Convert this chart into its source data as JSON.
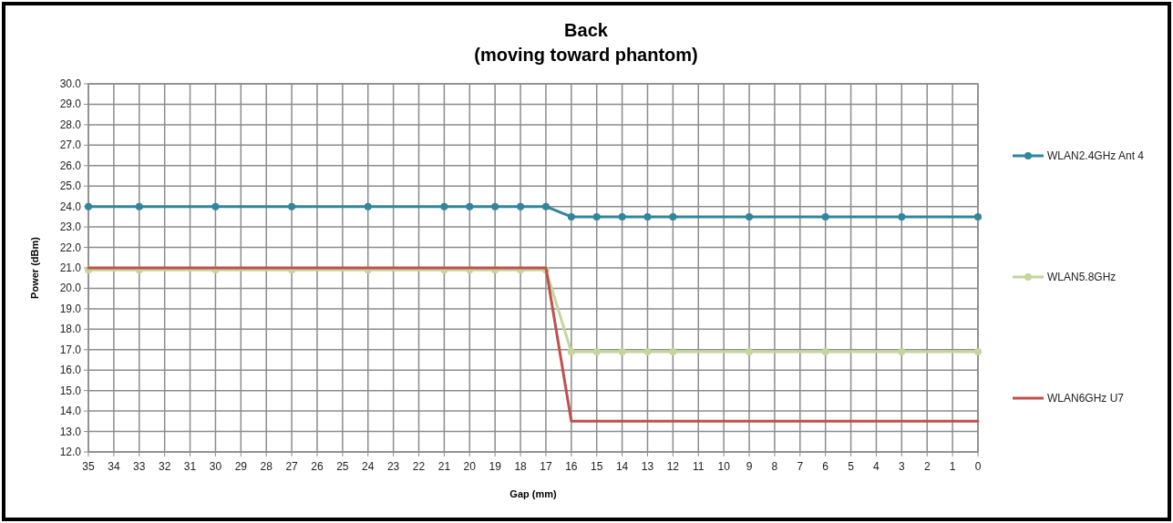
{
  "chart_data": {
    "type": "line",
    "title": "Back\n(moving toward phantom)",
    "xlabel": "Gap (mm)",
    "ylabel": "Power (dBm)",
    "x": [
      35,
      33,
      30,
      27,
      24,
      21,
      20,
      19,
      18,
      17,
      16,
      15,
      14,
      13,
      12,
      9,
      6,
      3,
      0
    ],
    "series": [
      {
        "name": "WLAN2.4GHz Ant 4",
        "color": "#31859c",
        "marker": "circle",
        "values": [
          24.0,
          24.0,
          24.0,
          24.0,
          24.0,
          24.0,
          24.0,
          24.0,
          24.0,
          24.0,
          23.5,
          23.5,
          23.5,
          23.5,
          23.5,
          23.5,
          23.5,
          23.5,
          23.5
        ]
      },
      {
        "name": "WLAN5.8GHz",
        "color": "#c3d69b",
        "marker": "circle",
        "values": [
          20.9,
          20.9,
          20.9,
          20.9,
          20.9,
          20.9,
          20.9,
          20.9,
          20.9,
          20.9,
          16.9,
          16.9,
          16.9,
          16.9,
          16.9,
          16.9,
          16.9,
          16.9,
          16.9
        ]
      },
      {
        "name": "WLAN6GHz U7",
        "color": "#c0504d",
        "marker": "none",
        "values": [
          21.0,
          21.0,
          21.0,
          21.0,
          21.0,
          21.0,
          21.0,
          21.0,
          21.0,
          21.0,
          13.5,
          13.5,
          13.5,
          13.5,
          13.5,
          13.5,
          13.5,
          13.5,
          13.5
        ]
      }
    ],
    "xlim": [
      35,
      0
    ],
    "xticks": [
      35,
      34,
      33,
      32,
      31,
      30,
      29,
      28,
      27,
      26,
      25,
      24,
      23,
      22,
      21,
      20,
      19,
      18,
      17,
      16,
      15,
      14,
      13,
      12,
      11,
      10,
      9,
      8,
      7,
      6,
      5,
      4,
      3,
      2,
      1,
      0
    ],
    "ylim": [
      12,
      30
    ],
    "yticks": [
      {
        "value": 12,
        "label": "12.0"
      },
      {
        "value": 13,
        "label": "13.0"
      },
      {
        "value": 14,
        "label": "14.0"
      },
      {
        "value": 15,
        "label": "15.0"
      },
      {
        "value": 16,
        "label": "16.0"
      },
      {
        "value": 17,
        "label": "17.0"
      },
      {
        "value": 18,
        "label": "18.0"
      },
      {
        "value": 19,
        "label": "19.0"
      },
      {
        "value": 20,
        "label": "20.0"
      },
      {
        "value": 21,
        "label": "21.0"
      },
      {
        "value": 22,
        "label": "22.0"
      },
      {
        "value": 23,
        "label": "23.0"
      },
      {
        "value": 24,
        "label": "24.0"
      },
      {
        "value": 25,
        "label": "25.0"
      },
      {
        "value": 26,
        "label": "26.0"
      },
      {
        "value": 27,
        "label": "27.0"
      },
      {
        "value": 28,
        "label": "28.0"
      },
      {
        "value": 29,
        "label": "29.0"
      },
      {
        "value": 30,
        "label": "30.0"
      }
    ],
    "grid": true,
    "legend": "right",
    "line_style": "solid"
  }
}
